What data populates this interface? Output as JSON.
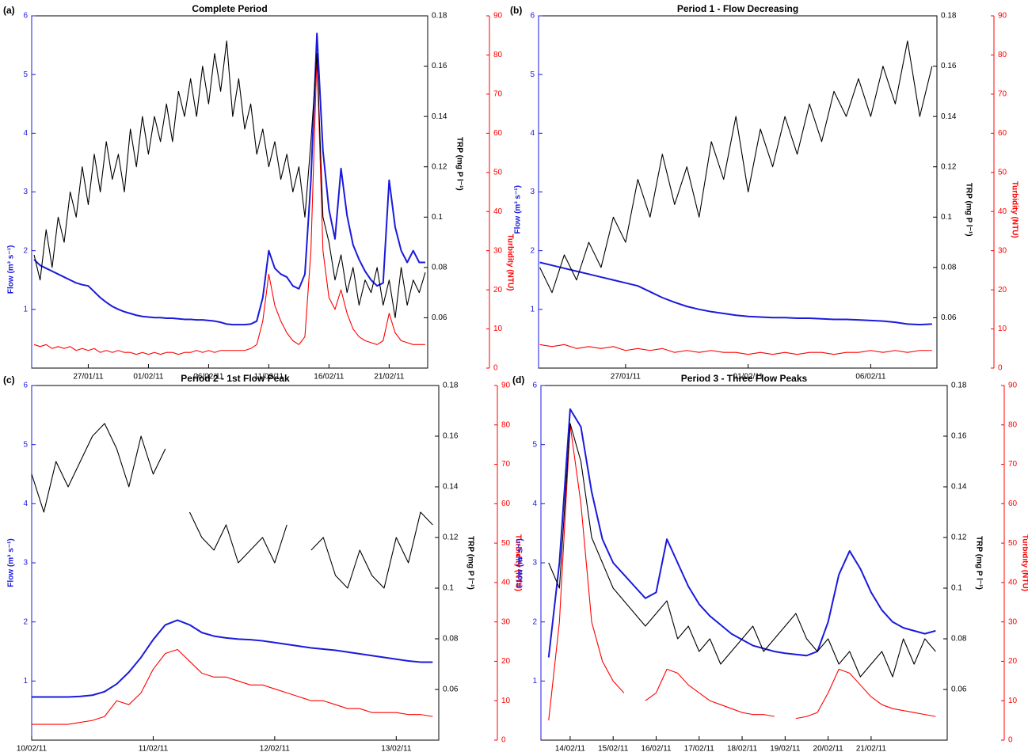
{
  "chart_data": [
    {
      "type": "line",
      "panel_label": "(a)",
      "title": "Complete Period",
      "x": [
        22.5,
        23,
        23.5,
        24,
        24.5,
        25,
        25.5,
        26,
        26.5,
        27,
        27.5,
        28,
        28.5,
        29,
        29.5,
        30,
        30.5,
        31,
        31.5,
        32,
        32.5,
        33,
        33.5,
        34,
        34.5,
        35,
        35.5,
        36,
        36.5,
        37,
        37.5,
        38,
        38.5,
        39,
        39.5,
        40,
        40.5,
        41,
        41.5,
        42,
        42.5,
        43,
        43.5,
        44,
        44.5,
        45,
        45.5,
        46,
        46.5,
        47,
        47.5,
        48,
        48.5,
        49,
        49.5,
        50,
        50.5,
        51,
        51.5,
        52,
        52.5,
        53,
        53.5,
        54,
        54.5,
        55
      ],
      "xlim": [
        22.3,
        55.2
      ],
      "xticks": [
        {
          "value": 27,
          "label": "27/01/11"
        },
        {
          "value": 32,
          "label": "01/02/11"
        },
        {
          "value": 37,
          "label": "06/02/11"
        },
        {
          "value": 42,
          "label": "11/02/11"
        },
        {
          "value": 47,
          "label": "16/02/11"
        },
        {
          "value": 52,
          "label": "21/02/11"
        }
      ],
      "ylim": [
        0,
        6
      ],
      "yticks": [
        1,
        2,
        3,
        4,
        5,
        6
      ],
      "y2lim": [
        0.04,
        0.18
      ],
      "y2ticks": [
        0.06,
        0.08,
        0.1,
        0.12,
        0.14,
        0.16,
        0.18
      ],
      "y3lim": [
        0,
        90
      ],
      "y3ticks": [
        0,
        10,
        20,
        30,
        40,
        50,
        60,
        70,
        80,
        90
      ],
      "series": [
        {
          "name": "Flow (m³ s⁻¹)",
          "color": "#1a1adc",
          "axis": "y",
          "values": [
            1.85,
            1.75,
            1.7,
            1.65,
            1.6,
            1.55,
            1.5,
            1.45,
            1.42,
            1.4,
            1.3,
            1.2,
            1.12,
            1.05,
            1,
            0.96,
            0.93,
            0.9,
            0.88,
            0.87,
            0.86,
            0.86,
            0.85,
            0.85,
            0.84,
            0.83,
            0.83,
            0.82,
            0.82,
            0.81,
            0.8,
            0.78,
            0.75,
            0.74,
            0.74,
            0.74,
            0.75,
            0.8,
            1.2,
            2,
            1.7,
            1.6,
            1.55,
            1.4,
            1.35,
            1.6,
            3.2,
            5.7,
            3.7,
            2.7,
            2.2,
            3.4,
            2.6,
            2.1,
            1.85,
            1.65,
            1.5,
            1.4,
            1.45,
            3.2,
            2.4,
            2,
            1.8,
            2,
            1.8,
            1.8
          ]
        },
        {
          "name": "Turbidity (NTU)",
          "color": "#ff0000",
          "axis": "y3",
          "values": [
            6,
            5.5,
            6,
            5,
            5.5,
            5,
            5.5,
            4.5,
            5,
            4.5,
            5,
            4,
            4.5,
            4,
            4.5,
            4,
            4,
            3.5,
            4,
            3.5,
            4,
            3.5,
            4,
            4,
            3.5,
            4,
            4,
            4.5,
            4,
            4.5,
            4,
            4.5,
            4.5,
            4.5,
            4.5,
            4.5,
            5,
            6,
            12,
            24,
            16,
            12,
            9,
            7,
            6,
            8,
            30,
            80,
            30,
            18,
            15,
            20,
            14,
            10,
            8,
            7,
            6.5,
            6,
            7,
            14,
            9,
            7,
            6.5,
            6,
            6,
            6
          ]
        },
        {
          "name": "TRP (mg P l⁻¹)",
          "color": "#000000",
          "axis": "y2",
          "values": [
            0.085,
            0.075,
            0.095,
            0.08,
            0.1,
            0.09,
            0.11,
            0.1,
            0.12,
            0.105,
            0.125,
            0.11,
            0.13,
            0.115,
            0.125,
            0.11,
            0.135,
            0.12,
            0.14,
            0.125,
            0.14,
            0.13,
            0.145,
            0.13,
            0.15,
            0.14,
            0.155,
            0.14,
            0.16,
            0.145,
            0.165,
            0.15,
            0.17,
            0.14,
            0.155,
            0.135,
            0.145,
            0.125,
            0.135,
            0.12,
            0.13,
            0.115,
            0.125,
            0.11,
            0.12,
            0.1,
            0.13,
            0.165,
            0.1,
            0.09,
            0.075,
            0.085,
            0.07,
            0.08,
            0.065,
            0.075,
            0.07,
            0.08,
            0.065,
            0.075,
            0.06,
            0.08,
            0.065,
            0.075,
            0.07,
            0.078
          ]
        }
      ]
    },
    {
      "type": "line",
      "panel_label": "(b)",
      "title": "Period 1 - Flow Decreasing",
      "x": [
        23.5,
        24,
        24.5,
        25,
        25.5,
        26,
        26.5,
        27,
        27.5,
        28,
        28.5,
        29,
        29.5,
        30,
        30.5,
        31,
        31.5,
        32,
        32.5,
        33,
        33.5,
        34,
        34.5,
        35,
        35.5,
        36,
        36.5,
        37,
        37.5,
        38,
        38.5,
        39,
        39.5
      ],
      "xlim": [
        23.45,
        39.7
      ],
      "xticks": [
        {
          "value": 27,
          "label": "27/01/11"
        },
        {
          "value": 32,
          "label": "01/02/11"
        },
        {
          "value": 37,
          "label": "06/02/11"
        }
      ],
      "ylim": [
        0,
        6
      ],
      "yticks": [
        1,
        2,
        3,
        4,
        5,
        6
      ],
      "y2lim": [
        0.04,
        0.18
      ],
      "y2ticks": [
        0.06,
        0.08,
        0.1,
        0.12,
        0.14,
        0.16,
        0.18
      ],
      "y3lim": [
        0,
        90
      ],
      "y3ticks": [
        0,
        10,
        20,
        30,
        40,
        50,
        60,
        70,
        80,
        90
      ],
      "series": [
        {
          "name": "Flow (m³ s⁻¹)",
          "color": "#1a1adc",
          "axis": "y",
          "values": [
            1.8,
            1.75,
            1.7,
            1.65,
            1.6,
            1.55,
            1.5,
            1.45,
            1.4,
            1.3,
            1.2,
            1.12,
            1.05,
            1,
            0.96,
            0.93,
            0.9,
            0.88,
            0.87,
            0.86,
            0.86,
            0.85,
            0.85,
            0.84,
            0.83,
            0.83,
            0.82,
            0.81,
            0.8,
            0.78,
            0.75,
            0.74,
            0.75
          ]
        },
        {
          "name": "Turbidity (NTU)",
          "color": "#ff0000",
          "axis": "y3",
          "values": [
            6,
            5.5,
            6,
            5,
            5.5,
            5,
            5.5,
            4.5,
            5,
            4.5,
            5,
            4,
            4.5,
            4,
            4.5,
            4,
            4,
            3.5,
            4,
            3.5,
            4,
            3.5,
            4,
            4,
            3.5,
            4,
            4,
            4.5,
            4,
            4.5,
            4,
            4.5,
            4.5
          ]
        },
        {
          "name": "TRP (mg P l⁻¹)",
          "color": "#000000",
          "axis": "y2",
          "values": [
            0.08,
            0.07,
            0.085,
            0.075,
            0.09,
            0.08,
            0.1,
            0.09,
            0.115,
            0.1,
            0.125,
            0.105,
            0.12,
            0.1,
            0.13,
            0.115,
            0.14,
            0.11,
            0.135,
            0.12,
            0.14,
            0.125,
            0.145,
            0.13,
            0.15,
            0.14,
            0.155,
            0.14,
            0.16,
            0.145,
            0.17,
            0.14,
            0.16
          ]
        }
      ]
    },
    {
      "type": "line",
      "panel_label": "(c)",
      "title": "Period 2 - 1st Flow Peak",
      "x": [
        41,
        41.1,
        41.2,
        41.3,
        41.4,
        41.5,
        41.6,
        41.7,
        41.8,
        41.9,
        42,
        42.1,
        42.2,
        42.3,
        42.4,
        42.5,
        42.6,
        42.7,
        42.8,
        42.9,
        43,
        43.1,
        43.2,
        43.3,
        43.4,
        43.5,
        43.6,
        43.7,
        43.8,
        43.9,
        44,
        44.1,
        44.2,
        44.3
      ],
      "xlim": [
        41,
        44.35
      ],
      "xticks": [
        {
          "value": 41,
          "label": "10/02/11"
        },
        {
          "value": 42,
          "label": "11/02/11"
        },
        {
          "value": 43,
          "label": "12/02/11"
        },
        {
          "value": 44,
          "label": "13/02/11"
        }
      ],
      "ylim": [
        0,
        6
      ],
      "yticks": [
        1,
        2,
        3,
        4,
        5,
        6
      ],
      "y2lim": [
        0.04,
        0.18
      ],
      "y2ticks": [
        0.06,
        0.08,
        0.1,
        0.12,
        0.14,
        0.16,
        0.18
      ],
      "y3lim": [
        0,
        90
      ],
      "y3ticks": [
        0,
        10,
        20,
        30,
        40,
        50,
        60,
        70,
        80,
        90
      ],
      "series": [
        {
          "name": "Flow (m³ s⁻¹)",
          "color": "#1a1adc",
          "axis": "y",
          "values": [
            0.73,
            0.73,
            0.73,
            0.73,
            0.74,
            0.76,
            0.82,
            0.95,
            1.15,
            1.4,
            1.7,
            1.95,
            2.03,
            1.95,
            1.82,
            1.76,
            1.73,
            1.71,
            1.7,
            1.68,
            1.65,
            1.62,
            1.59,
            1.56,
            1.54,
            1.52,
            1.49,
            1.46,
            1.43,
            1.4,
            1.37,
            1.34,
            1.32,
            1.32
          ]
        },
        {
          "name": "Turbidity (NTU)",
          "color": "#ff0000",
          "axis": "y3",
          "values": [
            4,
            4,
            4,
            4,
            4.5,
            5,
            6,
            10,
            9,
            12,
            18,
            22,
            23,
            20,
            17,
            16,
            16,
            15,
            14,
            14,
            13,
            12,
            11,
            10,
            10,
            9,
            8,
            8,
            7,
            7,
            7,
            6.5,
            6.5,
            6
          ]
        },
        {
          "name": "TRP (mg P l⁻¹)",
          "color": "#000000",
          "axis": "y2",
          "values": [
            0.145,
            0.13,
            0.15,
            0.14,
            0.15,
            0.16,
            0.165,
            0.155,
            0.14,
            0.16,
            0.145,
            0.155,
            null,
            0.13,
            0.12,
            0.115,
            0.125,
            0.11,
            0.115,
            0.12,
            0.11,
            0.125,
            null,
            0.115,
            0.12,
            0.105,
            0.1,
            0.115,
            0.105,
            0.1,
            0.12,
            0.11,
            0.13,
            0.125
          ]
        }
      ]
    },
    {
      "type": "line",
      "panel_label": "(d)",
      "title": "Period 3 - Three Flow Peaks",
      "x": [
        44.5,
        44.75,
        45,
        45.25,
        45.5,
        45.75,
        46,
        46.25,
        46.5,
        46.75,
        47,
        47.25,
        47.5,
        47.75,
        48,
        48.25,
        48.5,
        48.75,
        49,
        49.25,
        49.5,
        49.75,
        50,
        50.25,
        50.5,
        50.75,
        51,
        51.25,
        51.5,
        51.75,
        52,
        52.25,
        52.5,
        52.75,
        53,
        53.25,
        53.5
      ],
      "xlim": [
        44.32,
        53.77
      ],
      "xticks": [
        {
          "value": 45,
          "label": "14/02/11"
        },
        {
          "value": 46,
          "label": "15/02/11"
        },
        {
          "value": 47,
          "label": "16/02/11"
        },
        {
          "value": 48,
          "label": "17/02/11"
        },
        {
          "value": 49,
          "label": "18/02/11"
        },
        {
          "value": 50,
          "label": "19/02/11"
        },
        {
          "value": 51,
          "label": "20/02/11"
        },
        {
          "value": 52,
          "label": "21/02/11"
        }
      ],
      "ylim": [
        0,
        6
      ],
      "yticks": [
        1,
        2,
        3,
        4,
        5,
        6
      ],
      "y2lim": [
        0.04,
        0.18
      ],
      "y2ticks": [
        0.06,
        0.08,
        0.1,
        0.12,
        0.14,
        0.16,
        0.18
      ],
      "y3lim": [
        0,
        90
      ],
      "y3ticks": [
        0,
        10,
        20,
        30,
        40,
        50,
        60,
        70,
        80,
        90
      ],
      "series": [
        {
          "name": "Flow (m³ s⁻¹)",
          "color": "#1a1adc",
          "axis": "y",
          "values": [
            1.4,
            3,
            5.6,
            5.3,
            4.2,
            3.4,
            3,
            2.8,
            2.6,
            2.4,
            2.5,
            3.4,
            3,
            2.6,
            2.3,
            2.1,
            1.95,
            1.8,
            1.7,
            1.6,
            1.55,
            1.5,
            1.47,
            1.45,
            1.43,
            1.5,
            2,
            2.8,
            3.2,
            2.9,
            2.5,
            2.2,
            2,
            1.9,
            1.85,
            1.8,
            1.85
          ]
        },
        {
          "name": "Turbidity (NTU)",
          "color": "#ff0000",
          "axis": "y3",
          "values": [
            5,
            30,
            80,
            60,
            30,
            20,
            15,
            12,
            null,
            10,
            12,
            18,
            17,
            14,
            12,
            10,
            9,
            8,
            7,
            6.5,
            6.5,
            6,
            null,
            5.5,
            6,
            7,
            12,
            18,
            17,
            14,
            11,
            9,
            8,
            7.5,
            7,
            6.5,
            6
          ]
        },
        {
          "name": "TRP (mg P l⁻¹)",
          "color": "#000000",
          "axis": "y2",
          "values": [
            0.11,
            0.1,
            0.165,
            0.15,
            0.12,
            0.11,
            0.1,
            0.095,
            0.09,
            0.085,
            0.09,
            0.095,
            0.08,
            0.085,
            0.075,
            0.08,
            0.07,
            0.075,
            0.08,
            0.085,
            0.075,
            0.08,
            0.085,
            0.09,
            0.08,
            0.075,
            0.08,
            0.07,
            0.075,
            0.065,
            0.07,
            0.075,
            0.065,
            0.08,
            0.07,
            0.08,
            0.075
          ]
        }
      ]
    }
  ]
}
